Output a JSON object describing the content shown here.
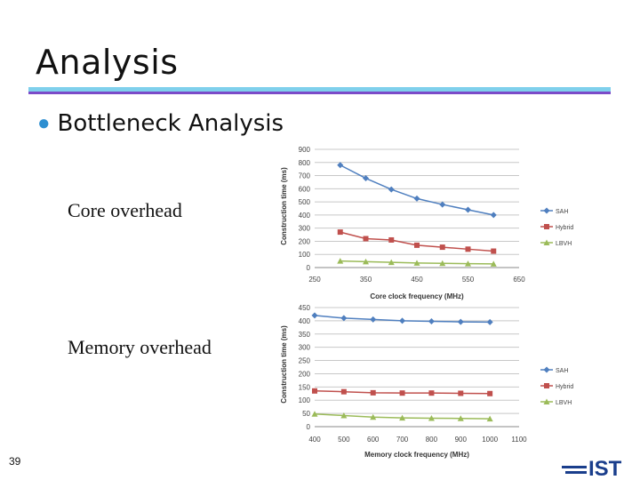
{
  "slide": {
    "title": "Analysis",
    "bullet": "Bottleneck Analysis",
    "core_label": "Core overhead",
    "memory_label": "Memory overhead",
    "page_number": "39",
    "logo_text": "IST",
    "colors": {
      "accent_top": "#7fd0ec",
      "accent_bottom": "#7b4bc8",
      "bullet": "#2e8fd1"
    }
  },
  "chart_data": [
    {
      "type": "line",
      "xlabel": "Core clock frequency (MHz)",
      "ylabel": "Construction time (ms)",
      "xlim": [
        250,
        650
      ],
      "ylim": [
        0,
        900
      ],
      "x_ticks": [
        250,
        350,
        450,
        550,
        650
      ],
      "y_ticks": [
        0,
        100,
        200,
        300,
        400,
        500,
        600,
        700,
        800,
        900
      ],
      "grid": true,
      "legend": "right",
      "x": [
        300,
        350,
        400,
        450,
        500,
        550,
        600
      ],
      "series": [
        {
          "name": "SAH",
          "color": "#4f7fbf",
          "marker": "diamond",
          "values": [
            780,
            680,
            595,
            525,
            480,
            440,
            400
          ]
        },
        {
          "name": "Hybrid",
          "color": "#c0504d",
          "marker": "square",
          "values": [
            270,
            220,
            210,
            170,
            155,
            140,
            125
          ]
        },
        {
          "name": "LBVH",
          "color": "#9bbb59",
          "marker": "triangle",
          "values": [
            50,
            45,
            40,
            35,
            32,
            30,
            28
          ]
        }
      ]
    },
    {
      "type": "line",
      "xlabel": "Memory clock frequency (MHz)",
      "ylabel": "Construction time (ms)",
      "xlim": [
        400,
        1100
      ],
      "ylim": [
        0,
        450
      ],
      "x_ticks": [
        400,
        500,
        600,
        700,
        800,
        900,
        1000,
        1100
      ],
      "y_ticks": [
        0,
        50,
        100,
        150,
        200,
        250,
        300,
        350,
        400,
        450
      ],
      "grid": true,
      "legend": "right",
      "x": [
        400,
        500,
        600,
        700,
        800,
        900,
        1000
      ],
      "series": [
        {
          "name": "SAH",
          "color": "#4f7fbf",
          "marker": "diamond",
          "values": [
            420,
            410,
            405,
            400,
            398,
            396,
            395
          ]
        },
        {
          "name": "Hybrid",
          "color": "#c0504d",
          "marker": "square",
          "values": [
            135,
            132,
            128,
            127,
            127,
            126,
            125
          ]
        },
        {
          "name": "LBVH",
          "color": "#9bbb59",
          "marker": "triangle",
          "values": [
            48,
            42,
            36,
            33,
            32,
            31,
            30
          ]
        }
      ]
    }
  ]
}
